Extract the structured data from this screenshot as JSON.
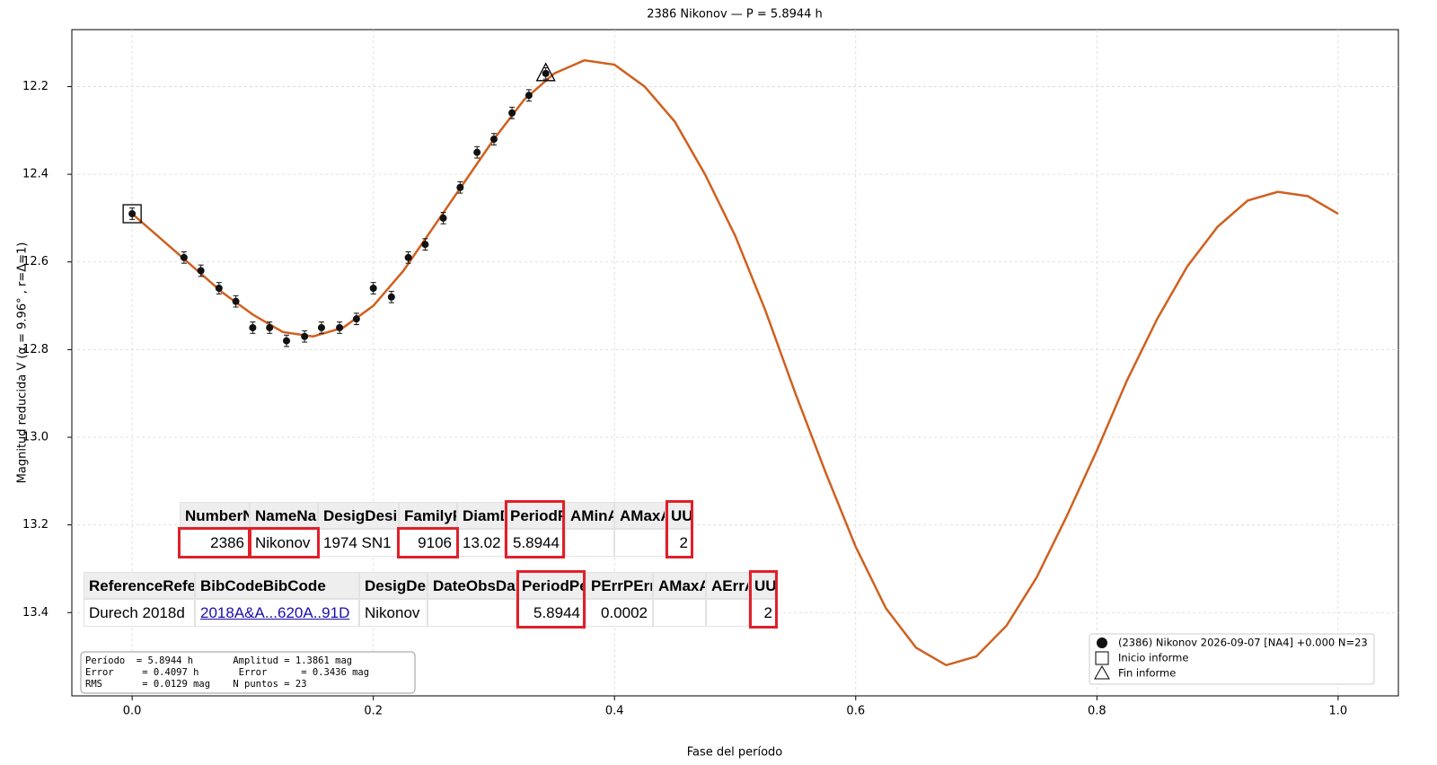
{
  "chart_data": {
    "type": "scatter",
    "title": "2386 Nikonov — P = 5.8944 h",
    "xlabel": "Fase del período",
    "ylabel": "Magnitud reducida V  (α = 9.96° , r=Δ=1)",
    "xlim": [
      -0.05,
      1.05
    ],
    "ylim": [
      12.07,
      13.59
    ],
    "y_inverted": true,
    "xticks": [
      {
        "value": 0,
        "label": "0.0"
      },
      0.2,
      0.4,
      0.6,
      0.8,
      {
        "value": 1,
        "label": "1.0"
      }
    ],
    "yticks": [
      12.2,
      12.4,
      12.6,
      12.8,
      {
        "value": 13,
        "label": "13.0"
      },
      13.2,
      13.4
    ],
    "grid": true,
    "legend_position": "lower right",
    "series": [
      {
        "name": "(2386) Nikonov 2026-09-07 [NA4] +0.000 N=23",
        "color": "#111111",
        "x": [
          0.0,
          0.043,
          0.057,
          0.072,
          0.086,
          0.1,
          0.114,
          0.128,
          0.143,
          0.157,
          0.172,
          0.186,
          0.2,
          0.215,
          0.229,
          0.243,
          0.258,
          0.272,
          0.286,
          0.3,
          0.315,
          0.329,
          0.343
        ],
        "values": [
          12.49,
          12.59,
          12.62,
          12.66,
          12.69,
          12.75,
          12.75,
          12.78,
          12.77,
          12.75,
          12.75,
          12.73,
          12.66,
          12.68,
          12.59,
          12.56,
          12.5,
          12.43,
          12.35,
          12.32,
          12.26,
          12.22,
          12.17
        ],
        "errors": [
          0.013,
          0.013,
          0.013,
          0.013,
          0.013,
          0.013,
          0.013,
          0.013,
          0.013,
          0.013,
          0.013,
          0.013,
          0.013,
          0.013,
          0.013,
          0.013,
          0.013,
          0.013,
          0.013,
          0.013,
          0.013,
          0.013,
          0.013
        ]
      },
      {
        "color": "#d0601f",
        "x": [
          0,
          0.025,
          0.05,
          0.075,
          0.1,
          0.125,
          0.15,
          0.175,
          0.2,
          0.225,
          0.25,
          0.275,
          0.3,
          0.325,
          0.35,
          0.375,
          0.4,
          0.425,
          0.45,
          0.475,
          0.5,
          0.525,
          0.55,
          0.575,
          0.6,
          0.625,
          0.65,
          0.675,
          0.7,
          0.725,
          0.75,
          0.775,
          0.8,
          0.825,
          0.85,
          0.875,
          0.9,
          0.925,
          0.95,
          0.975,
          1.0
        ],
        "values": [
          12.49,
          12.55,
          12.61,
          12.67,
          12.72,
          12.76,
          12.77,
          12.75,
          12.7,
          12.62,
          12.52,
          12.42,
          12.32,
          12.23,
          12.17,
          12.14,
          12.15,
          12.2,
          12.28,
          12.4,
          12.54,
          12.71,
          12.9,
          13.08,
          13.25,
          13.39,
          13.48,
          13.52,
          13.5,
          13.43,
          13.32,
          13.18,
          13.03,
          12.87,
          12.73,
          12.61,
          12.52,
          12.46,
          12.44,
          12.45,
          12.49
        ]
      }
    ],
    "markers": [
      {
        "label": "Inicio informe",
        "shape": "square",
        "point": 0
      },
      {
        "label": "Fin informe",
        "shape": "triangle",
        "point": 22
      }
    ],
    "stats": [
      "Período  = 5.8944 h       Amplitud = 1.3861 mag",
      "Error     = 0.4097 h       Error      = 0.3436 mag",
      "RMS       = 0.0129 mag    N puntos = 23"
    ],
    "tables": [
      {
        "columns": [
          "Number",
          "Name",
          "Desig",
          "Family",
          "Diam",
          "Period",
          "AMin",
          "AMax",
          "U"
        ],
        "rows": [
          [
            "2386",
            "Nikonov",
            "1974 SN1",
            "9106",
            "13.02",
            "5.8944",
            null,
            null,
            "2"
          ]
        ]
      },
      {
        "columns": [
          "Reference",
          "BibCode",
          "Desig",
          "DateObs",
          "Period",
          "PErr",
          "AMax",
          "AErr",
          "U"
        ],
        "rows": [
          [
            "Durech 2018d",
            "2018A&A...620A..91D",
            "Nikonov",
            null,
            "5.8944",
            "0.0002",
            null,
            null,
            "2"
          ]
        ]
      }
    ]
  }
}
